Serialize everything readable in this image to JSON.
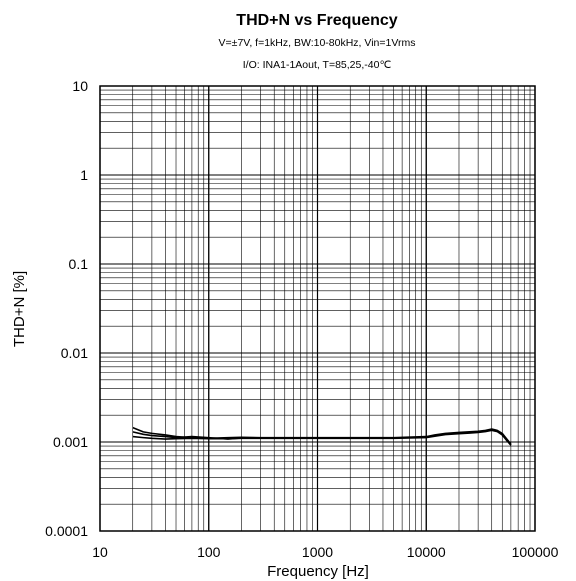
{
  "chart_data": {
    "type": "line",
    "title": "THD+N vs Frequency",
    "subtitle_lines": [
      "V=±7V, f=1kHz, BW:10-80kHz, Vin=1Vrms",
      "I/O: INA1-1Aout, T=85,25,-40℃"
    ],
    "xlabel": "Frequency [Hz]",
    "ylabel": "THD+N [%]",
    "x_scale": "log",
    "y_scale": "log",
    "xlim": [
      10,
      100000
    ],
    "ylim": [
      0.0001,
      10
    ],
    "x_ticks": [
      "10",
      "100",
      "1000",
      "10000",
      "100000"
    ],
    "y_ticks": [
      "10",
      "1",
      "0.1",
      "0.01",
      "0.001",
      "0.0001"
    ],
    "grid": true,
    "legend": "none",
    "series": [
      {
        "x": [
          20,
          25,
          30,
          40,
          50,
          70,
          100,
          150,
          200,
          300,
          500,
          1000,
          2000,
          5000,
          10000,
          12000,
          15000,
          20000,
          25000,
          30000,
          35000,
          40000,
          45000,
          50000,
          55000,
          60000
        ],
        "y": [
          0.00145,
          0.0013,
          0.00125,
          0.0012,
          0.00115,
          0.00112,
          0.0011,
          0.00112,
          0.00113,
          0.00112,
          0.00112,
          0.00112,
          0.00112,
          0.00112,
          0.00115,
          0.0012,
          0.00125,
          0.00128,
          0.0013,
          0.00132,
          0.00135,
          0.0014,
          0.00135,
          0.00125,
          0.00108,
          0.00095
        ]
      },
      {
        "x": [
          20,
          25,
          30,
          40,
          50,
          70,
          100,
          150,
          200,
          300,
          500,
          1000,
          2000,
          5000,
          10000,
          12000,
          15000,
          20000,
          25000,
          30000,
          35000,
          40000,
          45000,
          50000,
          55000,
          60000
        ],
        "y": [
          0.0013,
          0.00122,
          0.00118,
          0.00115,
          0.00112,
          0.00115,
          0.00112,
          0.00108,
          0.00111,
          0.00111,
          0.00111,
          0.00111,
          0.00111,
          0.00111,
          0.00113,
          0.00118,
          0.00123,
          0.00126,
          0.00128,
          0.0013,
          0.00133,
          0.00137,
          0.00133,
          0.00122,
          0.00106,
          0.00093
        ]
      },
      {
        "x": [
          20,
          25,
          30,
          40,
          50,
          70,
          100,
          150,
          200,
          300,
          500,
          1000,
          2000,
          5000,
          10000,
          12000,
          15000,
          20000,
          25000,
          30000,
          35000,
          40000,
          45000,
          50000,
          55000,
          60000
        ],
        "y": [
          0.00115,
          0.00112,
          0.0011,
          0.00108,
          0.00109,
          0.0011,
          0.00109,
          0.00109,
          0.0011,
          0.0011,
          0.0011,
          0.0011,
          0.0011,
          0.0011,
          0.00112,
          0.00116,
          0.00121,
          0.00124,
          0.00126,
          0.00128,
          0.00131,
          0.00135,
          0.00131,
          0.0012,
          0.00104,
          0.00092
        ]
      }
    ]
  }
}
